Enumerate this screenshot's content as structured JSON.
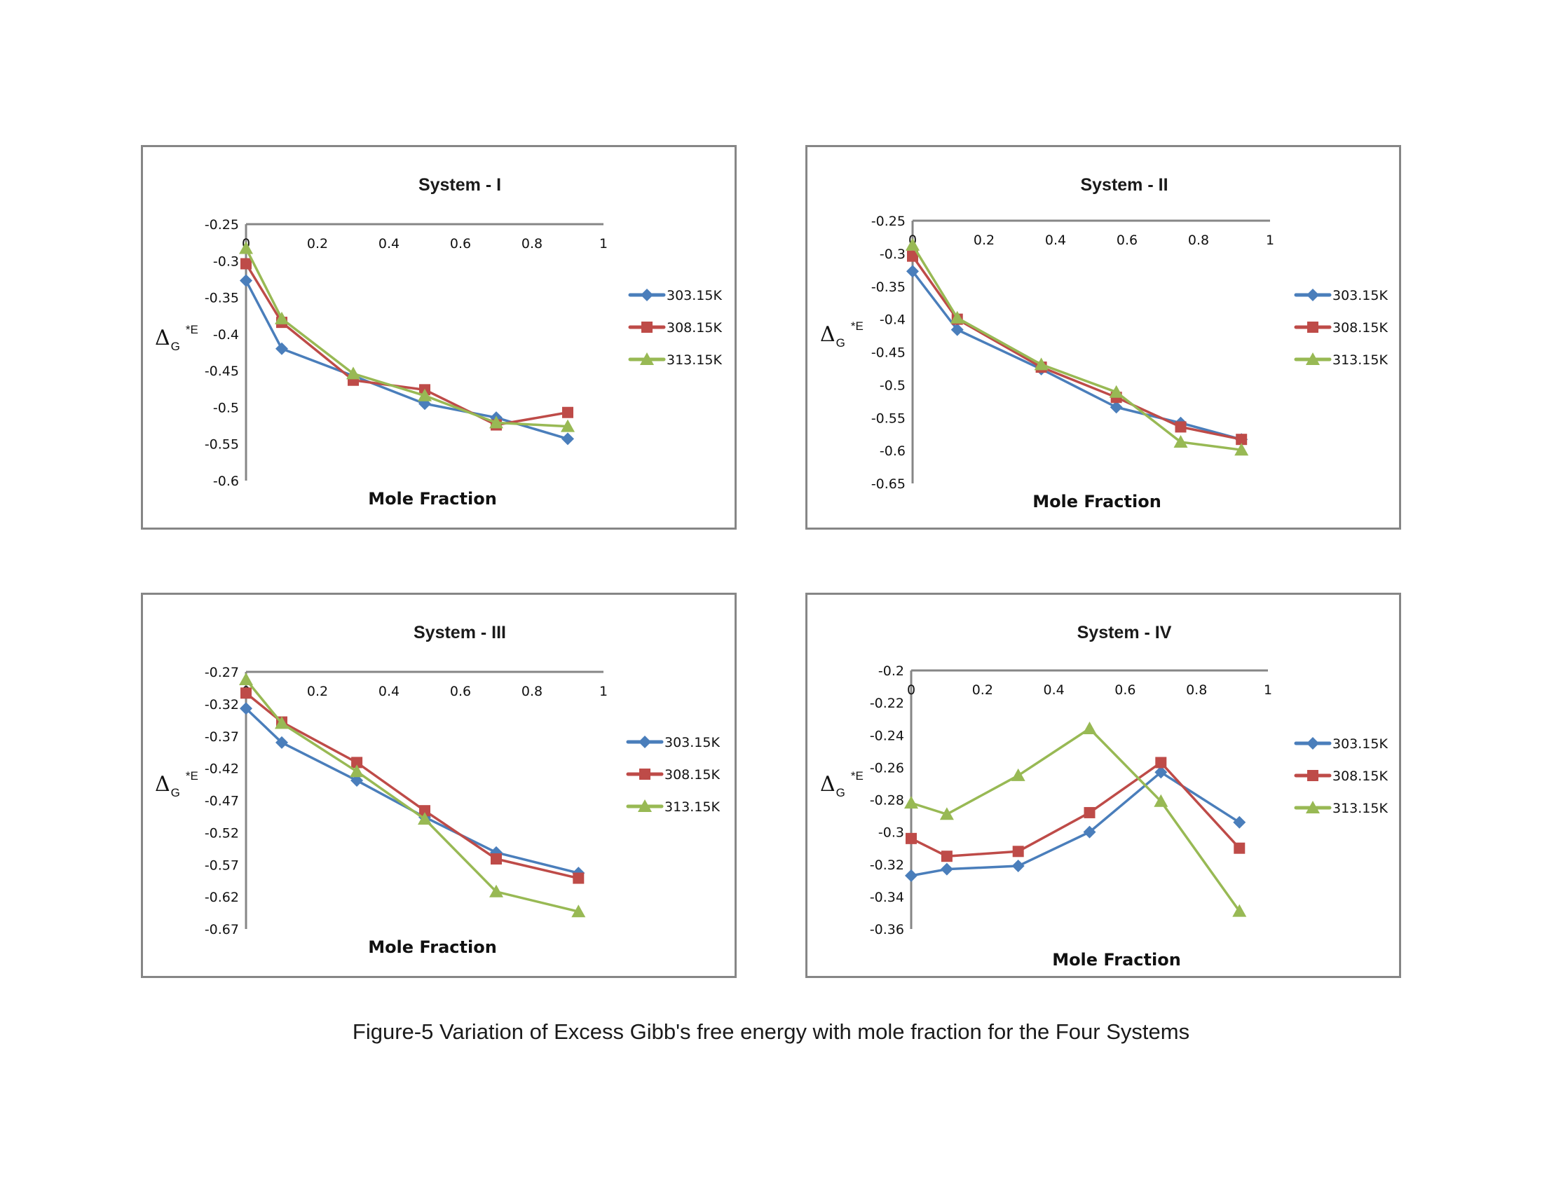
{
  "caption": "Figure-5 Variation of Excess Gibb's free energy with mole fraction for the Four Systems",
  "colors": {
    "303.15K": "#4a7ebb",
    "308.15K": "#be4b48",
    "313.15K": "#98b954",
    "axis": "#868686"
  },
  "chart_data": [
    {
      "type": "line",
      "title": "System - I",
      "xlabel": "Mole Fraction",
      "ylabel": "ΔG*E",
      "ylabel_parts": {
        "delta": "Δ",
        "sub": "G",
        "sup": "*E"
      },
      "xlim": [
        0,
        1
      ],
      "ylim": [
        -0.6,
        -0.25
      ],
      "x_ticks": [
        "0",
        "0.2",
        "0.4",
        "0.6",
        "0.8",
        "1"
      ],
      "x_tick_values": [
        0,
        0.2,
        0.4,
        0.6,
        0.8,
        1
      ],
      "y_ticks": [
        "-0.25",
        "-0.3",
        "-0.35",
        "-0.4",
        "-0.45",
        "-0.5",
        "-0.55",
        "-0.6"
      ],
      "y_tick_values": [
        -0.25,
        -0.3,
        -0.35,
        -0.4,
        -0.45,
        -0.5,
        -0.55,
        -0.6
      ],
      "x_axis_position": "top",
      "grid": false,
      "legend_position": "right",
      "x": [
        0,
        0.1,
        0.3,
        0.5,
        0.7,
        0.9
      ],
      "series": [
        {
          "name": "303.15K",
          "marker": "diamond",
          "values": [
            -0.327,
            -0.42,
            -0.457,
            -0.495,
            -0.514,
            -0.543
          ]
        },
        {
          "name": "308.15K",
          "marker": "square",
          "values": [
            -0.304,
            -0.384,
            -0.463,
            -0.476,
            -0.524,
            -0.507
          ]
        },
        {
          "name": "313.15K",
          "marker": "triangle",
          "values": [
            -0.283,
            -0.379,
            -0.454,
            -0.484,
            -0.521,
            -0.526
          ]
        }
      ]
    },
    {
      "type": "line",
      "title": "System - II",
      "xlabel": "Mole Fraction",
      "ylabel": "ΔG*E",
      "ylabel_parts": {
        "delta": "Δ",
        "sub": "G",
        "sup": "*E"
      },
      "xlim": [
        0,
        1
      ],
      "ylim": [
        -0.65,
        -0.25
      ],
      "x_ticks": [
        "0",
        "0.2",
        "0.4",
        "0.6",
        "0.8",
        "1"
      ],
      "x_tick_values": [
        0,
        0.2,
        0.4,
        0.6,
        0.8,
        1
      ],
      "y_ticks": [
        "-0.25",
        "-0.3",
        "-0.35",
        "-0.4",
        "-0.45",
        "-0.5",
        "-0.55",
        "-0.6",
        "-0.65"
      ],
      "y_tick_values": [
        -0.25,
        -0.3,
        -0.35,
        -0.4,
        -0.45,
        -0.5,
        -0.55,
        -0.6,
        -0.65
      ],
      "x_axis_position": "top",
      "grid": false,
      "legend_position": "right",
      "x": [
        0,
        0.125,
        0.36,
        0.57,
        0.75,
        0.92
      ],
      "series": [
        {
          "name": "303.15K",
          "marker": "diamond",
          "values": [
            -0.327,
            -0.416,
            -0.476,
            -0.534,
            -0.558,
            -0.583
          ]
        },
        {
          "name": "308.15K",
          "marker": "square",
          "values": [
            -0.304,
            -0.4,
            -0.473,
            -0.519,
            -0.564,
            -0.583
          ]
        },
        {
          "name": "313.15K",
          "marker": "triangle",
          "values": [
            -0.287,
            -0.398,
            -0.469,
            -0.511,
            -0.587,
            -0.599
          ]
        }
      ]
    },
    {
      "type": "line",
      "title": "System - III",
      "xlabel": "Mole Fraction",
      "ylabel": "ΔG*E",
      "ylabel_parts": {
        "delta": "Δ",
        "sub": "G",
        "sup": "*E"
      },
      "xlim": [
        0,
        1
      ],
      "ylim": [
        -0.67,
        -0.27
      ],
      "x_ticks": [
        "0",
        "0.2",
        "0.4",
        "0.6",
        "0.8",
        "1"
      ],
      "x_tick_values": [
        0,
        0.2,
        0.4,
        0.6,
        0.8,
        1
      ],
      "y_ticks": [
        "-0.27",
        "-0.32",
        "-0.37",
        "-0.42",
        "-0.47",
        "-0.52",
        "-0.57",
        "-0.62",
        "-0.67"
      ],
      "y_tick_values": [
        -0.27,
        -0.32,
        -0.37,
        -0.42,
        -0.47,
        -0.52,
        -0.57,
        -0.62,
        -0.67
      ],
      "x_axis_position": "top",
      "grid": false,
      "legend_position": "right",
      "x": [
        0,
        0.1,
        0.31,
        0.5,
        0.7,
        0.93
      ],
      "series": [
        {
          "name": "303.15K",
          "marker": "diamond",
          "values": [
            -0.327,
            -0.38,
            -0.439,
            -0.496,
            -0.551,
            -0.583
          ]
        },
        {
          "name": "308.15K",
          "marker": "square",
          "values": [
            -0.303,
            -0.348,
            -0.411,
            -0.486,
            -0.561,
            -0.591
          ]
        },
        {
          "name": "313.15K",
          "marker": "triangle",
          "values": [
            -0.282,
            -0.35,
            -0.425,
            -0.499,
            -0.612,
            -0.643
          ]
        }
      ]
    },
    {
      "type": "line",
      "title": "System - IV",
      "xlabel": "Mole Fraction",
      "ylabel": "ΔG*E",
      "ylabel_parts": {
        "delta": "Δ",
        "sub": "G",
        "sup": "*E"
      },
      "xlim": [
        0,
        1
      ],
      "ylim": [
        -0.36,
        -0.2
      ],
      "x_ticks": [
        "0",
        "0.2",
        "0.4",
        "0.6",
        "0.8",
        "1"
      ],
      "x_tick_values": [
        0,
        0.2,
        0.4,
        0.6,
        0.8,
        1
      ],
      "y_ticks": [
        "-0.2",
        "-0.22",
        "-0.24",
        "-0.26",
        "-0.28",
        "-0.3",
        "-0.32",
        "-0.34",
        "-0.36"
      ],
      "y_tick_values": [
        -0.2,
        -0.22,
        -0.24,
        -0.26,
        -0.28,
        -0.3,
        -0.32,
        -0.34,
        -0.36
      ],
      "x_axis_position": "top",
      "grid": false,
      "legend_position": "right",
      "x": [
        0,
        0.1,
        0.3,
        0.5,
        0.7,
        0.92
      ],
      "series": [
        {
          "name": "303.15K",
          "marker": "diamond",
          "values": [
            -0.327,
            -0.323,
            -0.321,
            -0.3,
            -0.263,
            -0.294
          ]
        },
        {
          "name": "308.15K",
          "marker": "square",
          "values": [
            -0.304,
            -0.315,
            -0.312,
            -0.288,
            -0.257,
            -0.31
          ]
        },
        {
          "name": "313.15K",
          "marker": "triangle",
          "values": [
            -0.282,
            -0.289,
            -0.265,
            -0.236,
            -0.281,
            -0.349
          ]
        }
      ]
    }
  ]
}
